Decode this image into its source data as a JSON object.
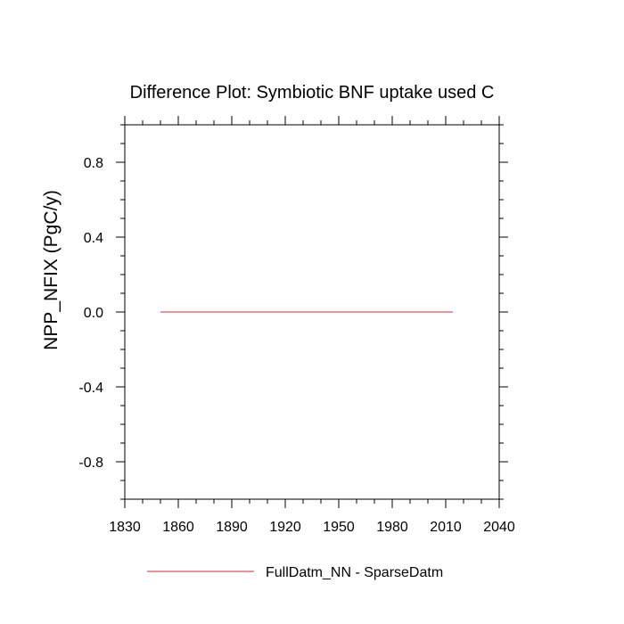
{
  "chart_data": {
    "type": "line",
    "title": "Difference Plot: Symbiotic BNF uptake used C",
    "xlabel": "",
    "ylabel": "NPP_NFIX  (PgC/y)",
    "xlim": [
      1830,
      2040
    ],
    "ylim": [
      -1.0,
      1.0
    ],
    "x_ticks": [
      1830,
      1860,
      1890,
      1920,
      1950,
      1980,
      2010,
      2040
    ],
    "x_tick_labels": [
      "1830",
      "1860",
      "1890",
      "1920",
      "1950",
      "1980",
      "2010",
      "2040"
    ],
    "y_ticks": [
      -0.8,
      -0.4,
      0.0,
      0.4,
      0.8
    ],
    "y_tick_labels": [
      "-0.8",
      "-0.4",
      "0.0",
      "0.4",
      "0.8"
    ],
    "grid": false,
    "legend_position": "bottom-center",
    "series": [
      {
        "name": "FullDatm_NN - SparseDatm",
        "color": "#e0707a",
        "x": [
          1850,
          2014
        ],
        "y": [
          0.0,
          0.0
        ]
      }
    ]
  }
}
